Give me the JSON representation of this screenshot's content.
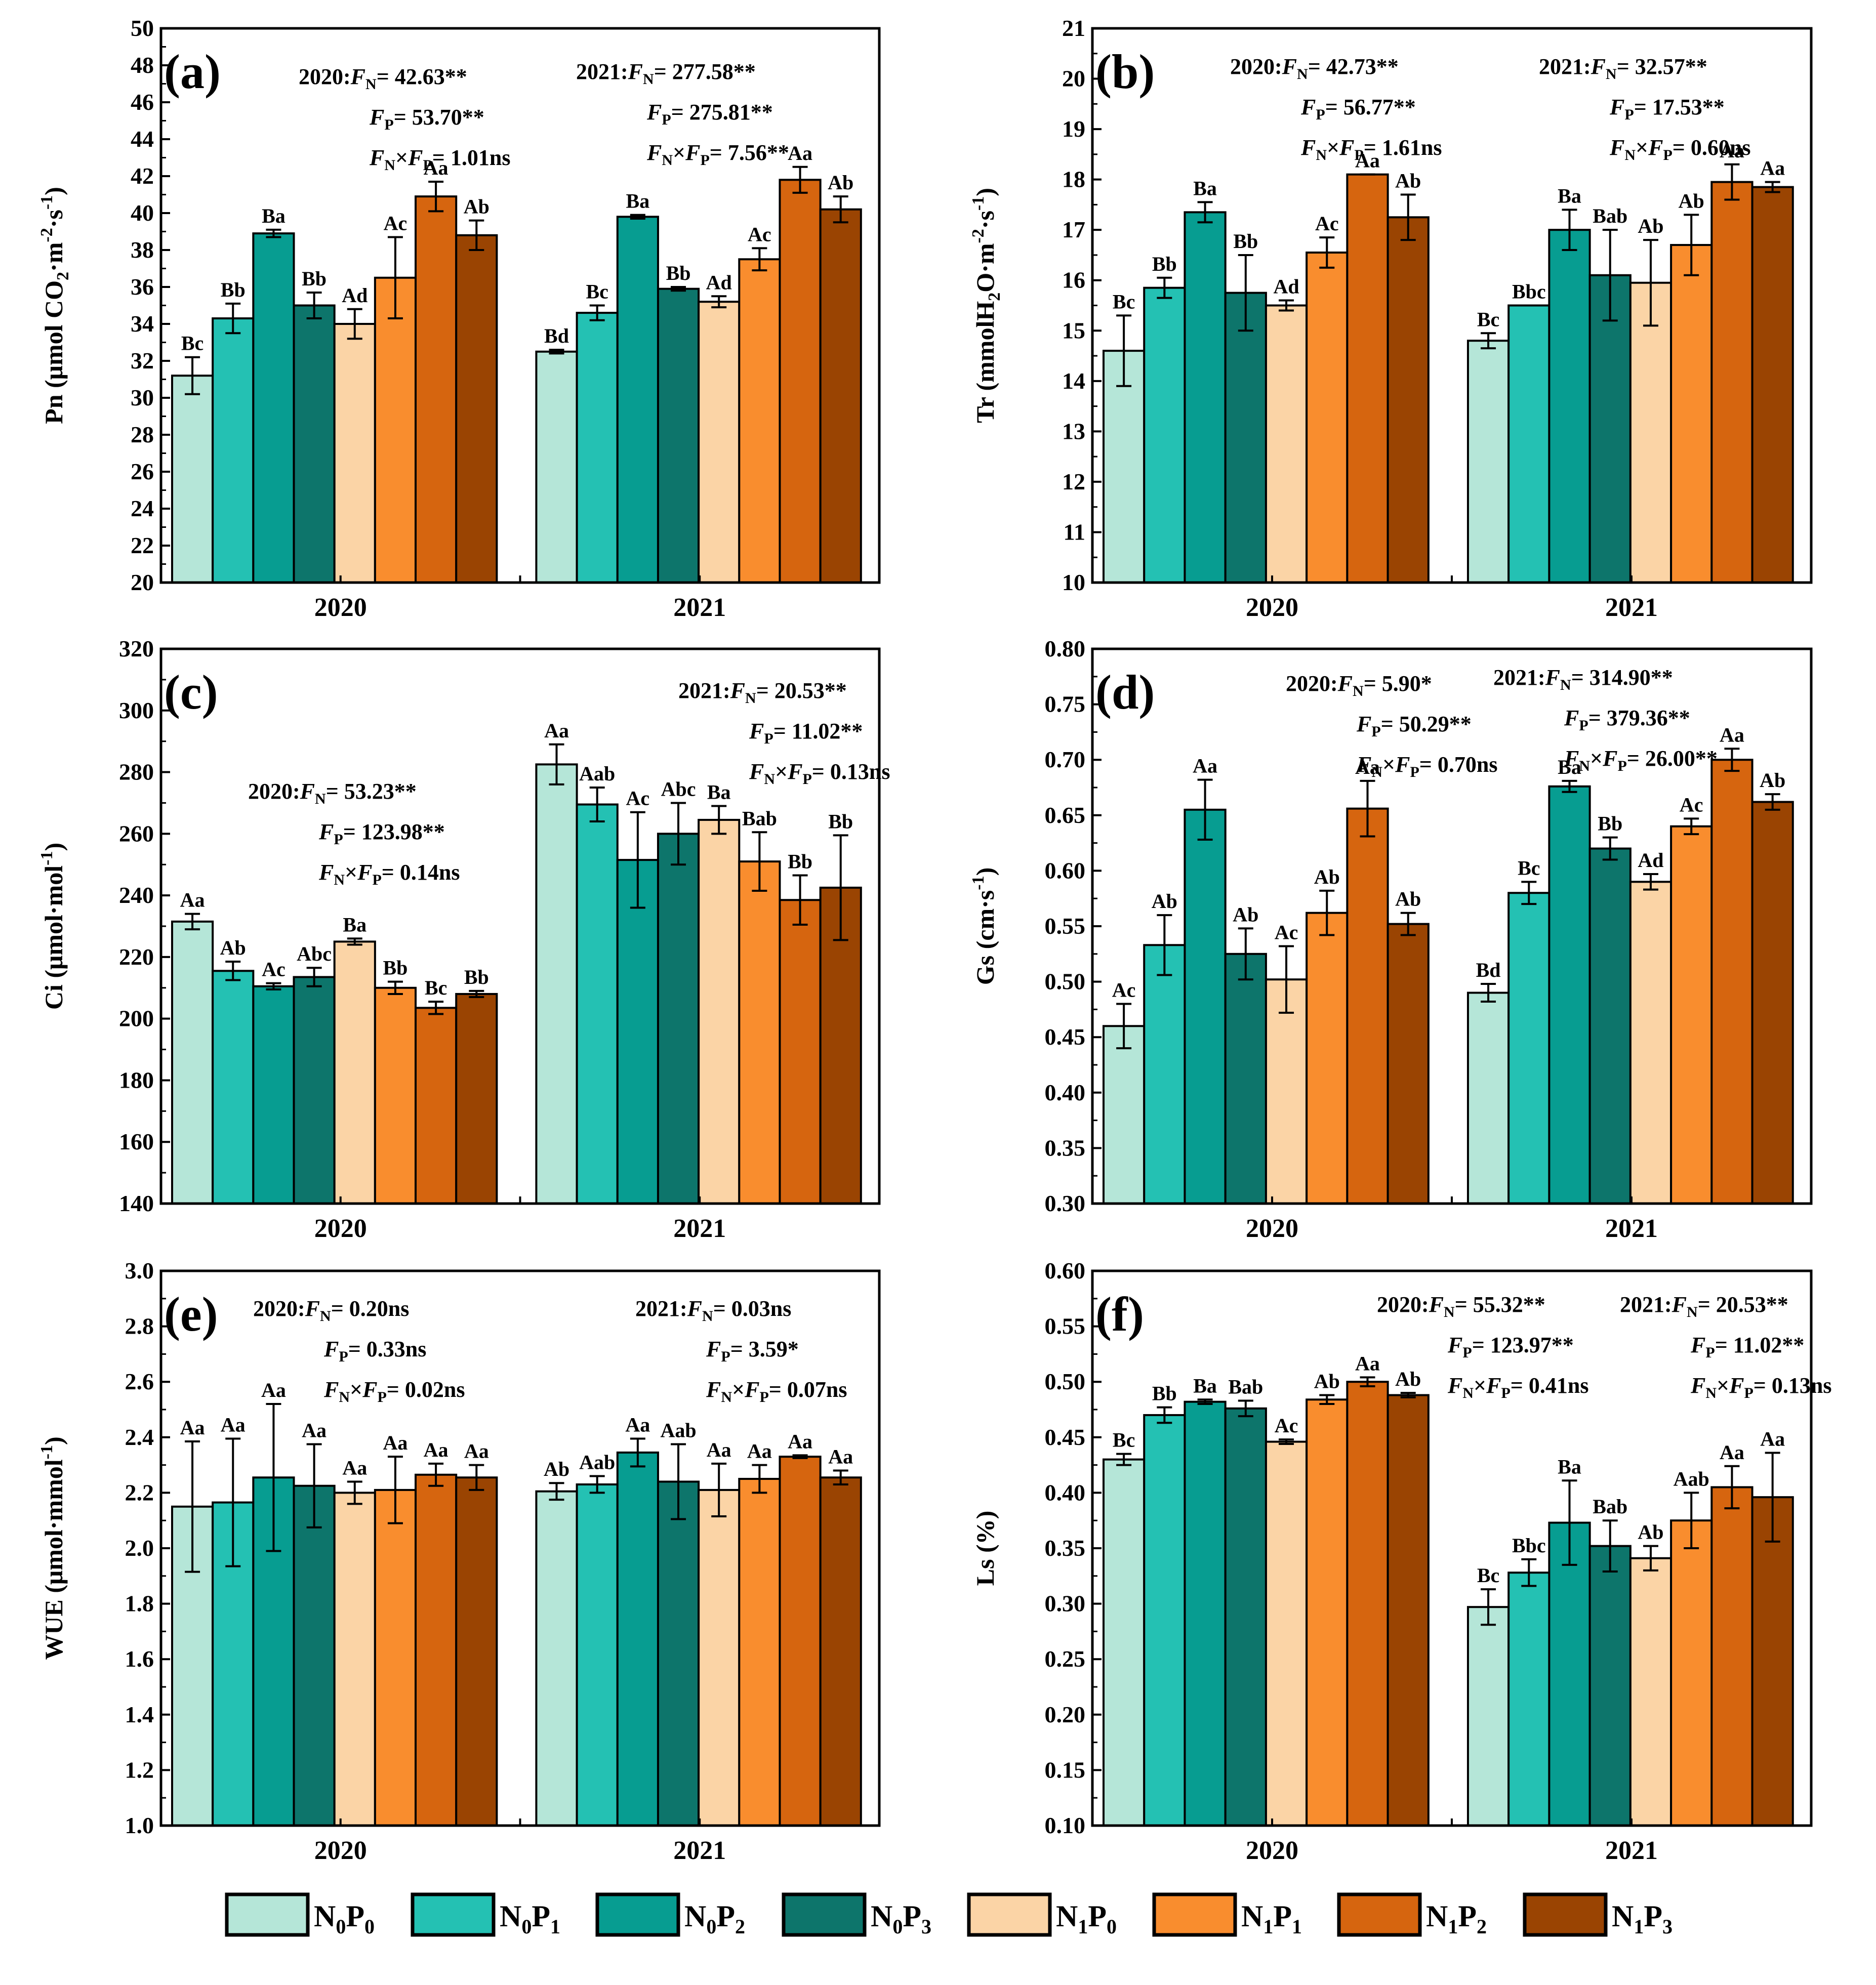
{
  "legend": {
    "items": [
      {
        "label": [
          "N",
          "0",
          "P",
          "0"
        ],
        "color": "#b5e6d8"
      },
      {
        "label": [
          "N",
          "0",
          "P",
          "1"
        ],
        "color": "#24c1b3"
      },
      {
        "label": [
          "N",
          "0",
          "P",
          "2"
        ],
        "color": "#079d91"
      },
      {
        "label": [
          "N",
          "0",
          "P",
          "3"
        ],
        "color": "#0d756b"
      },
      {
        "label": [
          "N",
          "1",
          "P",
          "0"
        ],
        "color": "#fbd4a6"
      },
      {
        "label": [
          "N",
          "1",
          "P",
          "1"
        ],
        "color": "#f98d2e"
      },
      {
        "label": [
          "N",
          "1",
          "P",
          "2"
        ],
        "color": "#d6650f"
      },
      {
        "label": [
          "N",
          "1",
          "P",
          "3"
        ],
        "color": "#9a4402"
      }
    ]
  },
  "chart_data": [
    {
      "type": "bar",
      "panel": "(a)",
      "ylabel": [
        "Pn (μmol CO",
        "2",
        "·m",
        "-2",
        "·s",
        "-1",
        ")"
      ],
      "ylim": [
        20,
        50
      ],
      "ytick_step": 2,
      "ytick_decimals": 0,
      "categories": [
        "2020",
        "2021"
      ],
      "values": [
        [
          31.2,
          34.3,
          38.9,
          35.0,
          34.0,
          36.5,
          40.9,
          38.8
        ],
        [
          32.5,
          34.6,
          39.8,
          35.9,
          35.2,
          37.5,
          41.8,
          40.2
        ]
      ],
      "errors": [
        [
          1.0,
          0.8,
          0.2,
          0.7,
          0.8,
          2.2,
          0.8,
          0.8
        ],
        [
          0.1,
          0.4,
          0.1,
          0.1,
          0.3,
          0.6,
          0.7,
          0.7
        ]
      ],
      "letters": [
        [
          "Bc",
          "Bb",
          "Ba",
          "Bb",
          "Ad",
          "Ac",
          "Aa",
          "Ab"
        ],
        [
          "Bd",
          "Bc",
          "Ba",
          "Bb",
          "Ad",
          "Ac",
          "Aa",
          "Ab"
        ]
      ],
      "stats": [
        {
          "year": "2020:",
          "fn": "= 42.63**",
          "fp": "= 53.70**",
          "fnfp": "= 1.01ns"
        },
        {
          "year": "2021:",
          "fn": "= 277.58**",
          "fp": "= 275.81**",
          "fnfp": "= 7.56**"
        }
      ]
    },
    {
      "type": "bar",
      "panel": "(b)",
      "ylabel": [
        "Tr (mmolH",
        "2",
        "O·m",
        "-2",
        "·s",
        "-1",
        ")"
      ],
      "ylim": [
        10,
        21
      ],
      "ytick_step": 1,
      "ytick_decimals": 0,
      "categories": [
        "2020",
        "2021"
      ],
      "values": [
        [
          14.6,
          15.85,
          17.35,
          15.75,
          15.5,
          16.55,
          18.1,
          17.25
        ],
        [
          14.8,
          15.5,
          17.0,
          16.1,
          15.95,
          16.7,
          17.95,
          17.85
        ]
      ],
      "errors": [
        [
          0.7,
          0.2,
          0.2,
          0.75,
          0.1,
          0.3,
          0.0,
          0.45
        ],
        [
          0.15,
          0.0,
          0.4,
          0.9,
          0.85,
          0.6,
          0.35,
          0.1
        ]
      ],
      "letters": [
        [
          "Bc",
          "Bb",
          "Ba",
          "Bb",
          "Ad",
          "Ac",
          "Aa",
          "Ab"
        ],
        [
          "Bc",
          "Bbc",
          "Ba",
          "Bab",
          "Ab",
          "Ab",
          "Aa",
          "Aa"
        ]
      ],
      "stats": [
        {
          "year": "2020:",
          "fn": "= 42.73**",
          "fp": "= 56.77**",
          "fnfp": "= 1.61ns"
        },
        {
          "year": "2021:",
          "fn": "= 32.57**",
          "fp": "= 17.53**",
          "fnfp": "= 0.60ns"
        }
      ]
    },
    {
      "type": "bar",
      "panel": "(c)",
      "ylabel": [
        "Ci (μmol·mol",
        "-1",
        ")"
      ],
      "ylim": [
        140,
        320
      ],
      "ytick_step": 20,
      "ytick_decimals": 0,
      "categories": [
        "2020",
        "2021"
      ],
      "values": [
        [
          231.5,
          215.5,
          210.5,
          213.5,
          225.0,
          210.0,
          203.5,
          208.0
        ],
        [
          282.5,
          269.5,
          251.5,
          260.0,
          264.5,
          251.0,
          238.5,
          242.5
        ]
      ],
      "errors": [
        [
          2.5,
          3.0,
          1.0,
          3.0,
          1.0,
          2.0,
          2.0,
          1.0
        ],
        [
          6.5,
          5.5,
          15.5,
          10.0,
          4.5,
          9.5,
          8.0,
          17.0
        ]
      ],
      "letters": [
        [
          "Aa",
          "Ab",
          "Ac",
          "Abc",
          "Ba",
          "Bb",
          "Bc",
          "Bb"
        ],
        [
          "Aa",
          "Aab",
          "Ac",
          "Abc",
          "Ba",
          "Bab",
          "Bb",
          "Bb"
        ]
      ],
      "stats": [
        {
          "year": "2020:",
          "fn": "= 53.23**",
          "fp": "= 123.98**",
          "fnfp": "= 0.14ns"
        },
        {
          "year": "2021:",
          "fn": "= 20.53**",
          "fp": "= 11.02**",
          "fnfp": "= 0.13ns"
        }
      ]
    },
    {
      "type": "bar",
      "panel": "(d)",
      "ylabel": [
        "Gs (cm·s",
        "-1",
        ")"
      ],
      "ylim": [
        0.3,
        0.8
      ],
      "ytick_step": 0.05,
      "ytick_decimals": 2,
      "categories": [
        "2020",
        "2021"
      ],
      "values": [
        [
          0.46,
          0.533,
          0.655,
          0.525,
          0.502,
          0.562,
          0.656,
          0.552
        ],
        [
          0.49,
          0.58,
          0.676,
          0.62,
          0.59,
          0.64,
          0.7,
          0.662
        ]
      ],
      "errors": [
        [
          0.02,
          0.027,
          0.027,
          0.023,
          0.03,
          0.02,
          0.025,
          0.01
        ],
        [
          0.008,
          0.01,
          0.005,
          0.01,
          0.007,
          0.007,
          0.01,
          0.007
        ]
      ],
      "letters": [
        [
          "Ac",
          "Ab",
          "Aa",
          "Ab",
          "Ac",
          "Ab",
          "Aa",
          "Ab"
        ],
        [
          "Bd",
          "Bc",
          "Ba",
          "Bb",
          "Ad",
          "Ac",
          "Aa",
          "Ab"
        ]
      ],
      "stats": [
        {
          "year": "2020:",
          "fn": "= 5.90*",
          "fp": "= 50.29**",
          "fnfp": "= 0.70ns"
        },
        {
          "year": "2021:",
          "fn": "= 314.90**",
          "fp": "= 379.36**",
          "fnfp": "= 26.00**"
        }
      ]
    },
    {
      "type": "bar",
      "panel": "(e)",
      "ylabel": [
        "WUE (μmol·mmol",
        "-1",
        ")"
      ],
      "ylim": [
        1.0,
        3.0
      ],
      "ytick_step": 0.2,
      "ytick_decimals": 1,
      "categories": [
        "2020",
        "2021"
      ],
      "values": [
        [
          2.15,
          2.165,
          2.255,
          2.225,
          2.2,
          2.21,
          2.265,
          2.255
        ],
        [
          2.205,
          2.23,
          2.345,
          2.24,
          2.21,
          2.25,
          2.33,
          2.255
        ]
      ],
      "errors": [
        [
          0.235,
          0.23,
          0.265,
          0.15,
          0.04,
          0.12,
          0.04,
          0.045
        ],
        [
          0.03,
          0.03,
          0.05,
          0.135,
          0.095,
          0.05,
          0.005,
          0.025
        ]
      ],
      "letters": [
        [
          "Aa",
          "Aa",
          "Aa",
          "Aa",
          "Aa",
          "Aa",
          "Aa",
          "Aa"
        ],
        [
          "Ab",
          "Aab",
          "Aa",
          "Aab",
          "Aa",
          "Aa",
          "Aa",
          "Aa"
        ]
      ],
      "stats": [
        {
          "year": "2020:",
          "fn": "= 0.20ns",
          "fp": "= 0.33ns",
          "fnfp": "= 0.02ns"
        },
        {
          "year": "2021:",
          "fn": "= 0.03ns",
          "fp": "= 3.59*",
          "fnfp": "= 0.07ns"
        }
      ]
    },
    {
      "type": "bar",
      "panel": "(f)",
      "ylabel": [
        "Ls (%)"
      ],
      "ylim": [
        0.1,
        0.6
      ],
      "ytick_step": 0.05,
      "ytick_decimals": 2,
      "categories": [
        "2020",
        "2021"
      ],
      "values": [
        [
          0.43,
          0.47,
          0.482,
          0.476,
          0.446,
          0.484,
          0.5,
          0.488
        ],
        [
          0.297,
          0.328,
          0.373,
          0.352,
          0.341,
          0.375,
          0.405,
          0.396
        ]
      ],
      "errors": [
        [
          0.005,
          0.007,
          0.002,
          0.007,
          0.002,
          0.004,
          0.004,
          0.002
        ],
        [
          0.016,
          0.012,
          0.038,
          0.023,
          0.011,
          0.025,
          0.019,
          0.04
        ]
      ],
      "letters": [
        [
          "Bc",
          "Bb",
          "Ba",
          "Bab",
          "Ac",
          "Ab",
          "Aa",
          "Ab"
        ],
        [
          "Bc",
          "Bbc",
          "Ba",
          "Bab",
          "Ab",
          "Aab",
          "Aa",
          "Aa"
        ]
      ],
      "stats": [
        {
          "year": "2020:",
          "fn": "= 55.32**",
          "fp": "= 123.97**",
          "fnfp": "= 0.41ns"
        },
        {
          "year": "2021:",
          "fn": "= 20.53**",
          "fp": "= 11.02**",
          "fnfp": "= 0.13ns"
        }
      ]
    }
  ]
}
